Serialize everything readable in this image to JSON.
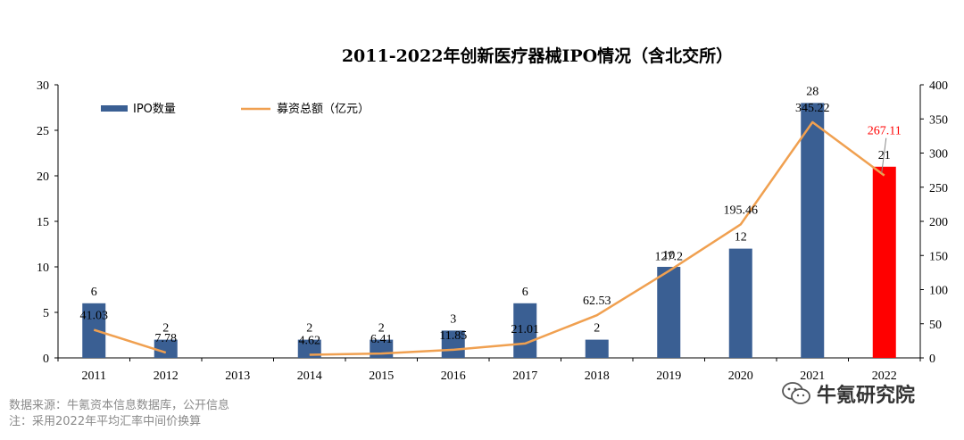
{
  "chart_data": {
    "type": "bar+line",
    "title": "2011-2022年创新医疗器械IPO情况（含北交所）",
    "categories": [
      "2011",
      "2012",
      "2013",
      "2014",
      "2015",
      "2016",
      "2017",
      "2018",
      "2019",
      "2020",
      "2021",
      "2022"
    ],
    "series": [
      {
        "name": "IPO数量",
        "type": "bar",
        "axis": "left",
        "values": [
          6,
          2,
          null,
          2,
          2,
          3,
          6,
          2,
          10,
          12,
          28,
          21
        ],
        "data_labels": [
          "6",
          "2",
          "",
          "2",
          "2",
          "3",
          "6",
          "2",
          "10",
          "12",
          "28",
          "21"
        ],
        "color": "#3a5f93",
        "highlight_color": "#ff0000",
        "highlight_index": 11
      },
      {
        "name": "募资总额（亿元）",
        "type": "line",
        "axis": "right",
        "values": [
          41.03,
          7.78,
          null,
          4.62,
          6.41,
          11.85,
          21.01,
          62.53,
          127.2,
          195.46,
          345.22,
          267.11
        ],
        "data_labels": [
          "41.03",
          "7.78",
          "",
          "4.62",
          "6.41",
          "11.85",
          "21.01",
          "62.53",
          "127.2",
          "195.46",
          "345.22",
          "267.11"
        ],
        "color": "#f0a050",
        "highlight_label_color": "#ff0000",
        "highlight_index": 11
      }
    ],
    "y_left": {
      "min": 0,
      "max": 30,
      "ticks": [
        "0",
        "5",
        "10",
        "15",
        "20",
        "25",
        "30"
      ]
    },
    "y_right": {
      "min": 0,
      "max": 400,
      "ticks": [
        "0",
        "50",
        "100",
        "150",
        "200",
        "250",
        "300",
        "350",
        "400"
      ]
    },
    "legend_position": "top-left",
    "grid": false
  },
  "footnotes": {
    "source": "数据来源：牛氪资本信息数据库，公开信息",
    "note": "注：采用2022年平均汇率中间价换算"
  },
  "watermark": {
    "text": "牛氪研究院",
    "icon": "wechat-icon"
  }
}
